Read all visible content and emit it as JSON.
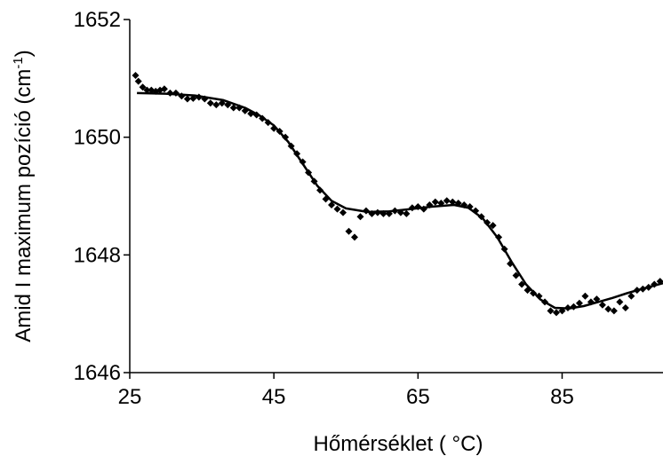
{
  "chart_data": {
    "type": "scatter",
    "title": "",
    "xlabel": "Hőmérséklet ( °C)",
    "ylabel_main": "Amid I maximum pozíció (cm",
    "ylabel_sup": "-1",
    "ylabel_end": ")",
    "xlim": [
      25,
      99
    ],
    "ylim": [
      1646,
      1652
    ],
    "xticks": [
      25,
      45,
      65,
      85
    ],
    "xtick_labels": [
      "25",
      "45",
      "65",
      "85"
    ],
    "yticks": [
      1646,
      1648,
      1650,
      1652
    ],
    "ytick_labels": [
      "1646",
      "1648",
      "1650",
      "1652"
    ],
    "grid": false,
    "legend": "none",
    "marker_color": "#000000",
    "series": [
      {
        "kind": "points",
        "marker": "diamond",
        "points": [
          [
            25.8,
            1651.05
          ],
          [
            26.2,
            1650.95
          ],
          [
            26.8,
            1650.85
          ],
          [
            27.4,
            1650.8
          ],
          [
            28.0,
            1650.8
          ],
          [
            28.6,
            1650.78
          ],
          [
            29.2,
            1650.8
          ],
          [
            29.8,
            1650.82
          ],
          [
            30.6,
            1650.75
          ],
          [
            31.4,
            1650.75
          ],
          [
            32.2,
            1650.7
          ],
          [
            33.0,
            1650.65
          ],
          [
            33.8,
            1650.66
          ],
          [
            34.6,
            1650.68
          ],
          [
            35.4,
            1650.65
          ],
          [
            36.2,
            1650.58
          ],
          [
            37.0,
            1650.55
          ],
          [
            37.8,
            1650.58
          ],
          [
            38.6,
            1650.55
          ],
          [
            39.4,
            1650.5
          ],
          [
            40.2,
            1650.5
          ],
          [
            41.0,
            1650.45
          ],
          [
            41.8,
            1650.4
          ],
          [
            42.6,
            1650.38
          ],
          [
            43.4,
            1650.32
          ],
          [
            44.2,
            1650.25
          ],
          [
            45.0,
            1650.15
          ],
          [
            45.8,
            1650.1
          ],
          [
            46.6,
            1650.0
          ],
          [
            47.4,
            1649.85
          ],
          [
            48.2,
            1649.72
          ],
          [
            49.0,
            1649.58
          ],
          [
            49.8,
            1649.4
          ],
          [
            50.6,
            1649.25
          ],
          [
            51.4,
            1649.1
          ],
          [
            52.2,
            1648.95
          ],
          [
            53.0,
            1648.85
          ],
          [
            53.8,
            1648.78
          ],
          [
            54.6,
            1648.72
          ],
          [
            55.4,
            1648.4
          ],
          [
            56.2,
            1648.3
          ],
          [
            57.0,
            1648.65
          ],
          [
            57.8,
            1648.75
          ],
          [
            58.6,
            1648.7
          ],
          [
            59.4,
            1648.72
          ],
          [
            60.2,
            1648.7
          ],
          [
            61.0,
            1648.7
          ],
          [
            61.8,
            1648.75
          ],
          [
            62.6,
            1648.72
          ],
          [
            63.4,
            1648.7
          ],
          [
            64.2,
            1648.8
          ],
          [
            65.0,
            1648.82
          ],
          [
            65.8,
            1648.78
          ],
          [
            66.6,
            1648.85
          ],
          [
            67.4,
            1648.9
          ],
          [
            68.2,
            1648.88
          ],
          [
            69.0,
            1648.92
          ],
          [
            69.8,
            1648.9
          ],
          [
            70.6,
            1648.88
          ],
          [
            71.4,
            1648.85
          ],
          [
            72.2,
            1648.82
          ],
          [
            73.0,
            1648.75
          ],
          [
            73.8,
            1648.65
          ],
          [
            74.6,
            1648.55
          ],
          [
            75.4,
            1648.5
          ],
          [
            76.2,
            1648.3
          ],
          [
            77.0,
            1648.1
          ],
          [
            77.8,
            1647.85
          ],
          [
            78.6,
            1647.65
          ],
          [
            79.4,
            1647.5
          ],
          [
            80.2,
            1647.4
          ],
          [
            81.0,
            1647.35
          ],
          [
            81.8,
            1647.3
          ],
          [
            82.6,
            1647.2
          ],
          [
            83.4,
            1647.05
          ],
          [
            84.2,
            1647.02
          ],
          [
            85.0,
            1647.05
          ],
          [
            85.8,
            1647.1
          ],
          [
            86.6,
            1647.12
          ],
          [
            87.4,
            1647.18
          ],
          [
            88.2,
            1647.3
          ],
          [
            89.0,
            1647.2
          ],
          [
            89.8,
            1647.25
          ],
          [
            90.6,
            1647.15
          ],
          [
            91.4,
            1647.08
          ],
          [
            92.2,
            1647.05
          ],
          [
            93.0,
            1647.2
          ],
          [
            93.8,
            1647.1
          ],
          [
            94.6,
            1647.3
          ],
          [
            95.4,
            1647.4
          ],
          [
            96.2,
            1647.42
          ],
          [
            97.0,
            1647.45
          ],
          [
            97.8,
            1647.5
          ],
          [
            98.6,
            1647.55
          ]
        ]
      },
      {
        "kind": "fit-line",
        "points": [
          [
            26,
            1650.75
          ],
          [
            30,
            1650.74
          ],
          [
            34,
            1650.71
          ],
          [
            38,
            1650.63
          ],
          [
            41,
            1650.5
          ],
          [
            43,
            1650.37
          ],
          [
            45,
            1650.2
          ],
          [
            47,
            1649.92
          ],
          [
            49,
            1649.55
          ],
          [
            51,
            1649.18
          ],
          [
            53,
            1648.92
          ],
          [
            55,
            1648.79
          ],
          [
            58,
            1648.73
          ],
          [
            61,
            1648.74
          ],
          [
            64,
            1648.78
          ],
          [
            67,
            1648.82
          ],
          [
            70,
            1648.85
          ],
          [
            72,
            1648.8
          ],
          [
            74,
            1648.62
          ],
          [
            76,
            1648.3
          ],
          [
            78,
            1647.88
          ],
          [
            80,
            1647.5
          ],
          [
            82,
            1647.24
          ],
          [
            84,
            1647.1
          ],
          [
            86,
            1647.09
          ],
          [
            88,
            1647.13
          ],
          [
            90,
            1647.2
          ],
          [
            92,
            1647.27
          ],
          [
            94,
            1647.35
          ],
          [
            96,
            1647.42
          ],
          [
            99,
            1647.52
          ]
        ]
      }
    ]
  }
}
